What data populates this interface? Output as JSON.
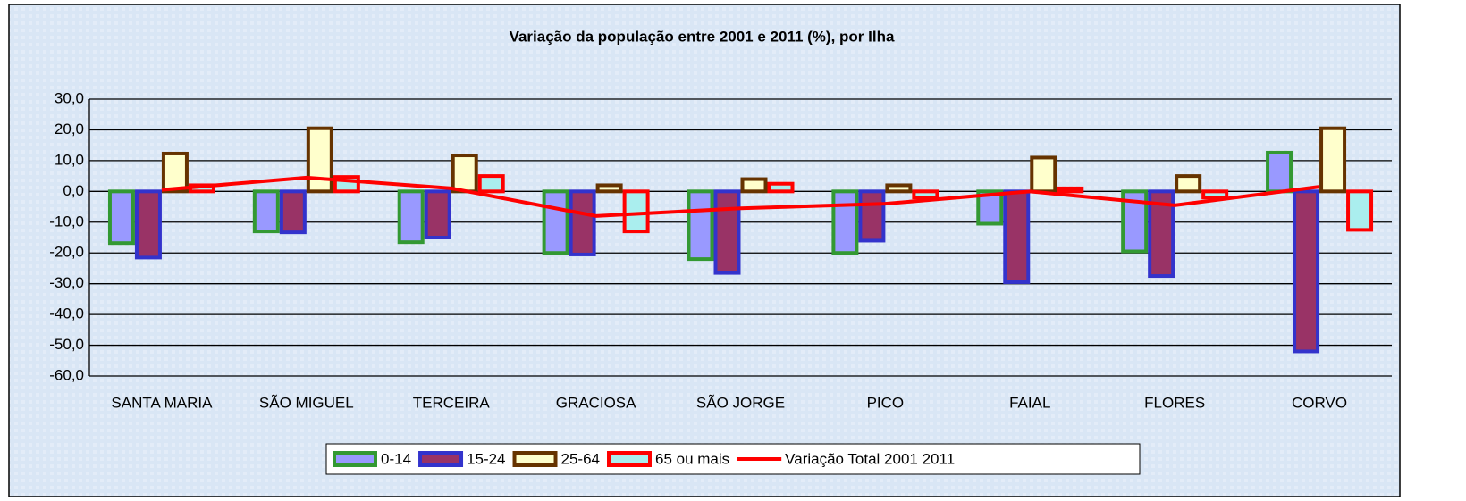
{
  "chart_data": {
    "type": "bar",
    "title": "Variação da população entre 2001 e 2011 (%), por Ilha",
    "categories": [
      "SANTA MARIA",
      "SÃO MIGUEL",
      "TERCEIRA",
      "GRACIOSA",
      "SÃO JORGE",
      "PICO",
      "FAIAL",
      "FLORES",
      "CORVO"
    ],
    "series": [
      {
        "name": "0-14",
        "type": "bar",
        "color": "#9999ff",
        "edgecolor": "#339933",
        "values": [
          -16.8,
          -13,
          -16.5,
          -20,
          -22,
          -20,
          -10.5,
          -19.5,
          12.6
        ]
      },
      {
        "name": "15-24",
        "type": "bar",
        "color": "#993366",
        "edgecolor": "#3333cc",
        "values": [
          -21.5,
          -13.3,
          -15,
          -20.5,
          -26.5,
          -16,
          -29.5,
          -27.5,
          -52
        ]
      },
      {
        "name": "25-64",
        "type": "bar",
        "color": "#ffffcc",
        "edgecolor": "#663300",
        "values": [
          12.3,
          20.5,
          11.7,
          2,
          4,
          2,
          11,
          5,
          20.5
        ]
      },
      {
        "name": "65 ou mais",
        "type": "bar",
        "color": "#aaeeee",
        "edgecolor": "#ff0000",
        "values": [
          2,
          4.7,
          5,
          -13,
          2.5,
          -2,
          1,
          -2,
          -12.5
        ]
      },
      {
        "name": "Variação Total 2001 2011",
        "type": "line",
        "color": "#ff0000",
        "values": [
          0.5,
          4.5,
          1,
          -8,
          -5.5,
          -4,
          0,
          -4.5,
          1.5
        ]
      }
    ],
    "ylim": [
      -60,
      30
    ],
    "yticks": [
      {
        "value": -60,
        "label": "-60,0"
      },
      {
        "value": -50,
        "label": "-50,0"
      },
      {
        "value": -40,
        "label": "-40,0"
      },
      {
        "value": -30,
        "label": "-30,0"
      },
      {
        "value": -20,
        "label": "-20,0"
      },
      {
        "value": -10,
        "label": "-10,0"
      },
      {
        "value": 0,
        "label": "0,0"
      },
      {
        "value": 10,
        "label": "10,0"
      },
      {
        "value": 20,
        "label": "20,0"
      },
      {
        "value": 30,
        "label": "30,0"
      }
    ],
    "grid": true,
    "legend": "bottom"
  }
}
